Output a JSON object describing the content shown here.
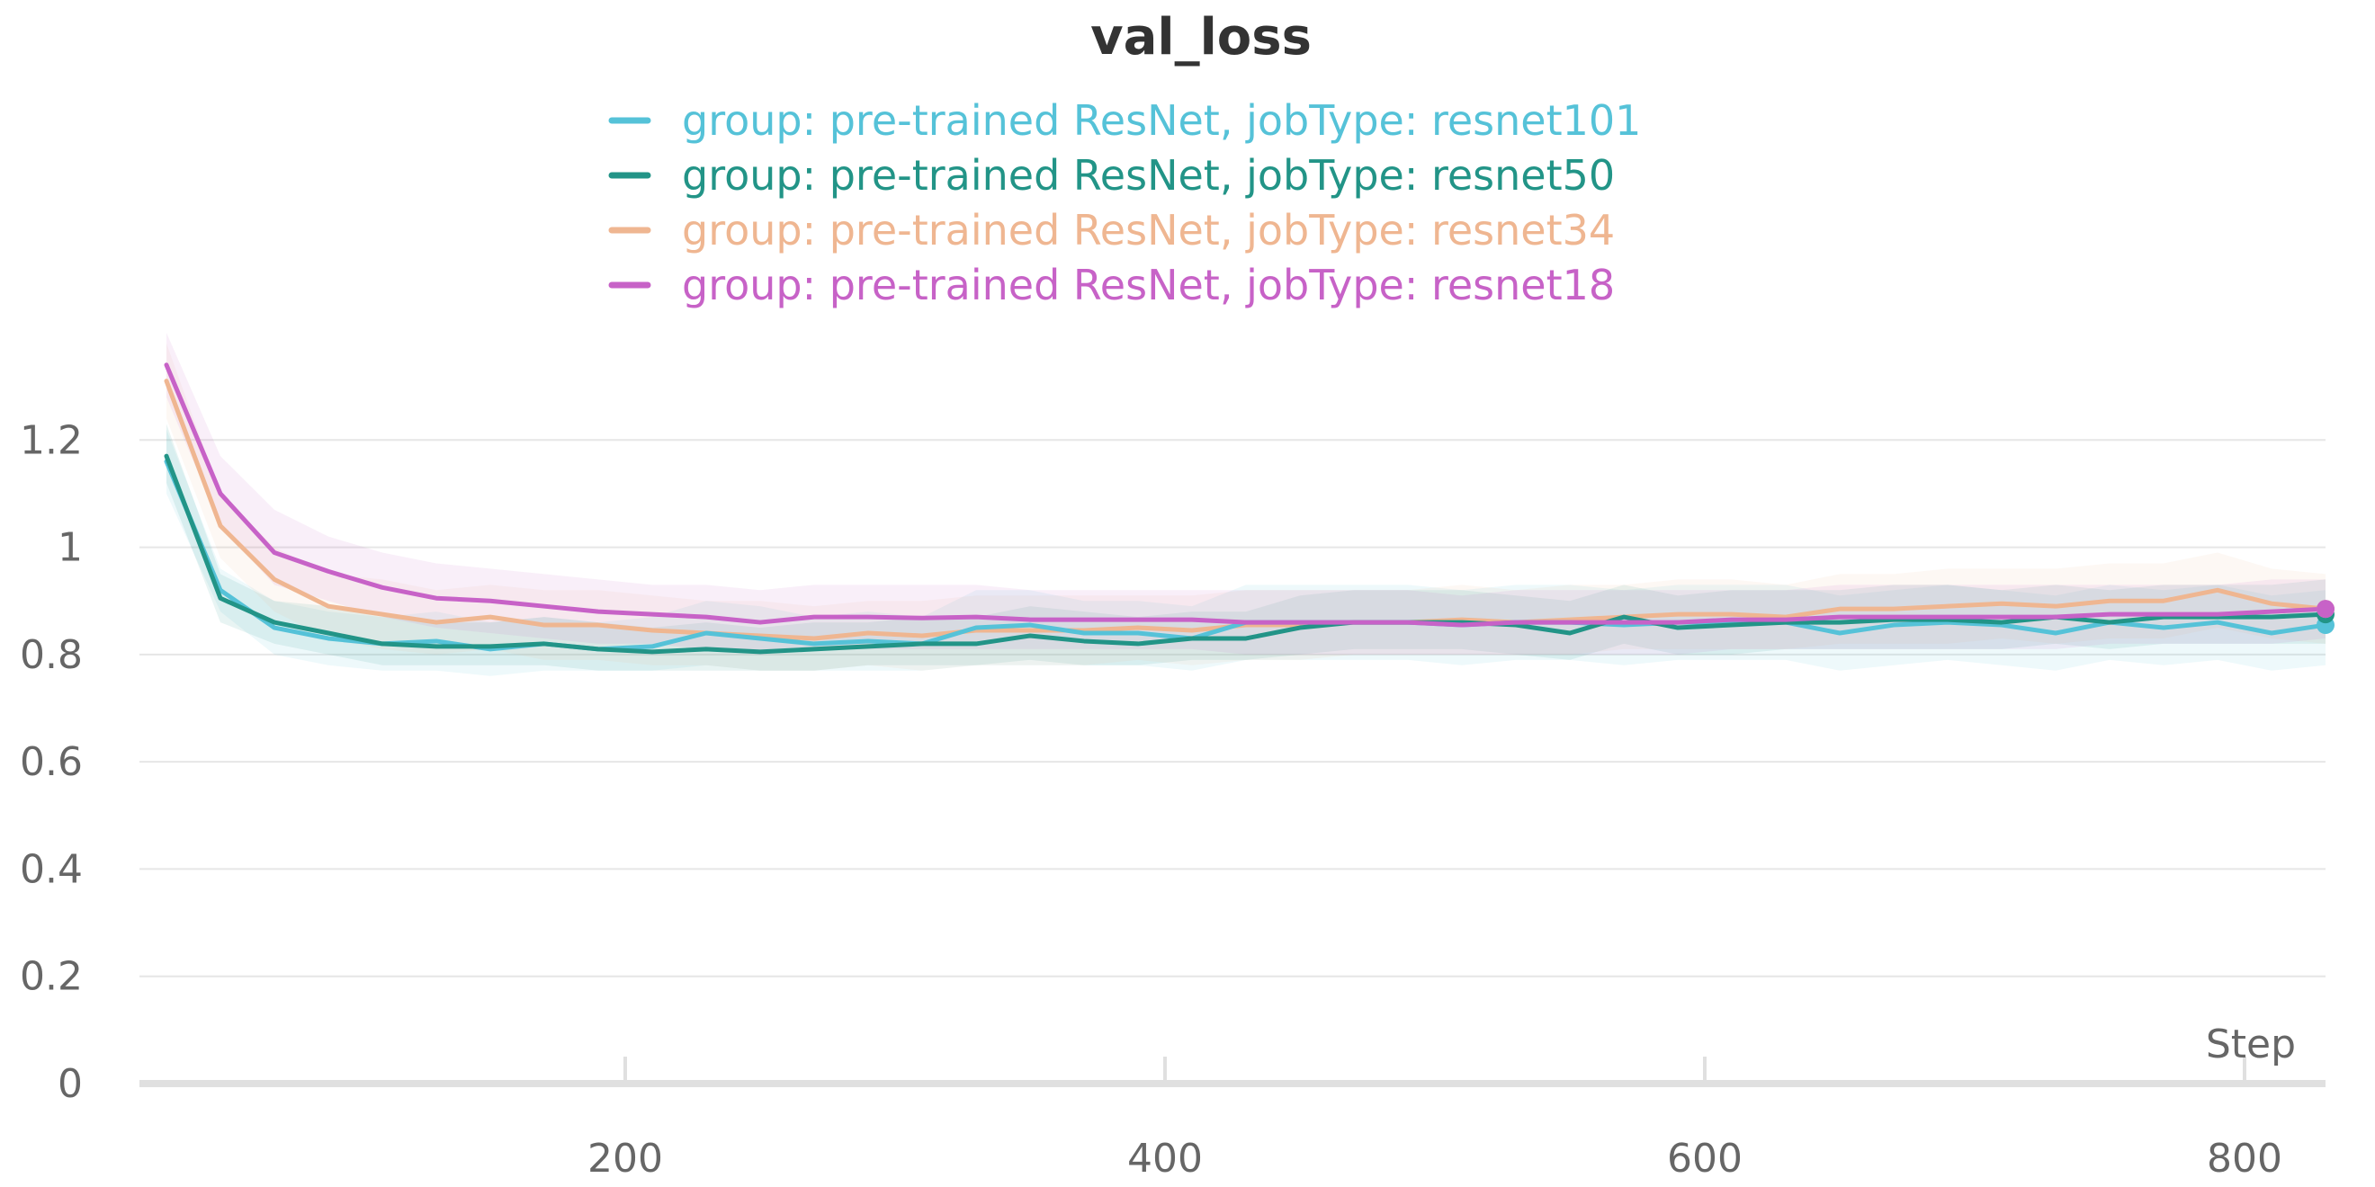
{
  "chart_data": {
    "type": "line",
    "title": "val_loss",
    "xlabel": "Step",
    "ylabel": "",
    "xlim": [
      20,
      830
    ],
    "ylim": [
      0,
      1.4
    ],
    "xticks": [
      200,
      400,
      600,
      800
    ],
    "yticks": [
      0,
      0.2,
      0.4,
      0.6,
      0.8,
      1,
      1.2
    ],
    "xtick_labels": [
      "200",
      "400",
      "600",
      "800"
    ],
    "ytick_labels": [
      "0",
      "0.2",
      "0.4",
      "0.6",
      "0.8",
      "1",
      "1.2"
    ],
    "grid": true,
    "legend_position": "top-center",
    "x": [
      30,
      50,
      70,
      90,
      110,
      130,
      150,
      170,
      190,
      210,
      230,
      250,
      270,
      290,
      310,
      330,
      350,
      370,
      390,
      410,
      430,
      450,
      470,
      490,
      510,
      530,
      550,
      570,
      590,
      610,
      630,
      650,
      670,
      690,
      710,
      730,
      750,
      770,
      790,
      810,
      830
    ],
    "series": [
      {
        "name": "group: pre-trained ResNet, jobType: resnet101",
        "color": "#55c2d8",
        "values": [
          1.16,
          0.92,
          0.85,
          0.83,
          0.82,
          0.825,
          0.81,
          0.82,
          0.81,
          0.815,
          0.84,
          0.83,
          0.82,
          0.825,
          0.82,
          0.85,
          0.855,
          0.84,
          0.84,
          0.83,
          0.86,
          0.86,
          0.86,
          0.86,
          0.855,
          0.86,
          0.86,
          0.855,
          0.86,
          0.86,
          0.86,
          0.84,
          0.855,
          0.86,
          0.855,
          0.84,
          0.86,
          0.85,
          0.86,
          0.84,
          0.855
        ],
        "band_low": [
          1.1,
          0.88,
          0.8,
          0.78,
          0.77,
          0.77,
          0.76,
          0.77,
          0.77,
          0.77,
          0.78,
          0.77,
          0.77,
          0.77,
          0.77,
          0.78,
          0.78,
          0.78,
          0.78,
          0.77,
          0.79,
          0.79,
          0.79,
          0.79,
          0.78,
          0.79,
          0.79,
          0.78,
          0.79,
          0.79,
          0.79,
          0.77,
          0.78,
          0.79,
          0.78,
          0.77,
          0.79,
          0.78,
          0.79,
          0.77,
          0.78
        ],
        "band_high": [
          1.22,
          0.96,
          0.9,
          0.88,
          0.87,
          0.88,
          0.86,
          0.87,
          0.86,
          0.87,
          0.9,
          0.89,
          0.87,
          0.88,
          0.87,
          0.92,
          0.92,
          0.9,
          0.9,
          0.89,
          0.93,
          0.93,
          0.93,
          0.93,
          0.92,
          0.93,
          0.93,
          0.92,
          0.93,
          0.93,
          0.93,
          0.91,
          0.92,
          0.93,
          0.92,
          0.91,
          0.93,
          0.92,
          0.93,
          0.91,
          0.92
        ]
      },
      {
        "name": "group: pre-trained ResNet, jobType: resnet50",
        "color": "#229487",
        "values": [
          1.17,
          0.905,
          0.86,
          0.84,
          0.82,
          0.815,
          0.815,
          0.82,
          0.81,
          0.805,
          0.81,
          0.805,
          0.81,
          0.815,
          0.82,
          0.82,
          0.835,
          0.825,
          0.82,
          0.83,
          0.83,
          0.85,
          0.86,
          0.86,
          0.86,
          0.855,
          0.84,
          0.87,
          0.85,
          0.855,
          0.86,
          0.86,
          0.865,
          0.865,
          0.86,
          0.87,
          0.86,
          0.87,
          0.87,
          0.87,
          0.875
        ],
        "band_low": [
          1.12,
          0.86,
          0.82,
          0.8,
          0.78,
          0.78,
          0.78,
          0.78,
          0.77,
          0.77,
          0.77,
          0.77,
          0.77,
          0.78,
          0.78,
          0.78,
          0.79,
          0.78,
          0.78,
          0.79,
          0.79,
          0.8,
          0.81,
          0.81,
          0.81,
          0.8,
          0.79,
          0.82,
          0.8,
          0.8,
          0.81,
          0.81,
          0.81,
          0.81,
          0.81,
          0.82,
          0.81,
          0.82,
          0.82,
          0.82,
          0.82
        ],
        "band_high": [
          1.23,
          0.95,
          0.9,
          0.89,
          0.87,
          0.86,
          0.86,
          0.87,
          0.86,
          0.85,
          0.86,
          0.85,
          0.86,
          0.86,
          0.87,
          0.87,
          0.89,
          0.88,
          0.87,
          0.88,
          0.88,
          0.91,
          0.92,
          0.92,
          0.92,
          0.91,
          0.9,
          0.93,
          0.91,
          0.92,
          0.92,
          0.92,
          0.93,
          0.93,
          0.92,
          0.93,
          0.92,
          0.93,
          0.93,
          0.93,
          0.94
        ]
      },
      {
        "name": "group: pre-trained ResNet, jobType: resnet34",
        "color": "#efb691",
        "values": [
          1.31,
          1.04,
          0.94,
          0.89,
          0.875,
          0.86,
          0.87,
          0.855,
          0.855,
          0.845,
          0.84,
          0.835,
          0.83,
          0.84,
          0.835,
          0.845,
          0.845,
          0.845,
          0.85,
          0.845,
          0.855,
          0.855,
          0.86,
          0.86,
          0.865,
          0.86,
          0.865,
          0.87,
          0.875,
          0.875,
          0.87,
          0.885,
          0.885,
          0.89,
          0.895,
          0.89,
          0.9,
          0.9,
          0.92,
          0.895,
          0.885
        ],
        "band_low": [
          1.24,
          0.98,
          0.88,
          0.83,
          0.81,
          0.8,
          0.81,
          0.79,
          0.79,
          0.78,
          0.78,
          0.77,
          0.77,
          0.78,
          0.77,
          0.78,
          0.78,
          0.78,
          0.79,
          0.78,
          0.79,
          0.79,
          0.8,
          0.8,
          0.8,
          0.8,
          0.8,
          0.81,
          0.81,
          0.81,
          0.81,
          0.82,
          0.82,
          0.82,
          0.83,
          0.82,
          0.83,
          0.83,
          0.85,
          0.83,
          0.82
        ],
        "band_high": [
          1.38,
          1.1,
          1.0,
          0.95,
          0.94,
          0.92,
          0.93,
          0.92,
          0.92,
          0.91,
          0.9,
          0.9,
          0.89,
          0.9,
          0.9,
          0.91,
          0.91,
          0.91,
          0.91,
          0.91,
          0.92,
          0.92,
          0.92,
          0.92,
          0.93,
          0.92,
          0.93,
          0.93,
          0.94,
          0.94,
          0.93,
          0.95,
          0.95,
          0.96,
          0.96,
          0.96,
          0.97,
          0.97,
          0.99,
          0.96,
          0.95
        ]
      },
      {
        "name": "group: pre-trained ResNet, jobType: resnet18",
        "color": "#c762c7",
        "values": [
          1.34,
          1.1,
          0.99,
          0.955,
          0.925,
          0.905,
          0.9,
          0.89,
          0.88,
          0.875,
          0.87,
          0.86,
          0.87,
          0.87,
          0.868,
          0.87,
          0.865,
          0.865,
          0.865,
          0.865,
          0.86,
          0.86,
          0.86,
          0.86,
          0.855,
          0.86,
          0.86,
          0.86,
          0.86,
          0.865,
          0.865,
          0.87,
          0.87,
          0.87,
          0.87,
          0.87,
          0.875,
          0.875,
          0.875,
          0.88,
          0.885
        ],
        "band_low": [
          1.28,
          1.04,
          0.93,
          0.9,
          0.87,
          0.85,
          0.84,
          0.83,
          0.82,
          0.82,
          0.81,
          0.8,
          0.81,
          0.81,
          0.81,
          0.81,
          0.81,
          0.81,
          0.81,
          0.81,
          0.8,
          0.8,
          0.8,
          0.8,
          0.8,
          0.8,
          0.8,
          0.8,
          0.8,
          0.81,
          0.81,
          0.81,
          0.81,
          0.81,
          0.81,
          0.81,
          0.82,
          0.82,
          0.82,
          0.82,
          0.83
        ],
        "band_high": [
          1.4,
          1.17,
          1.07,
          1.02,
          0.99,
          0.97,
          0.96,
          0.95,
          0.94,
          0.93,
          0.93,
          0.92,
          0.93,
          0.93,
          0.93,
          0.93,
          0.92,
          0.92,
          0.92,
          0.92,
          0.92,
          0.92,
          0.92,
          0.92,
          0.91,
          0.92,
          0.92,
          0.92,
          0.92,
          0.92,
          0.92,
          0.93,
          0.93,
          0.93,
          0.93,
          0.93,
          0.93,
          0.93,
          0.93,
          0.94,
          0.94
        ]
      }
    ]
  }
}
